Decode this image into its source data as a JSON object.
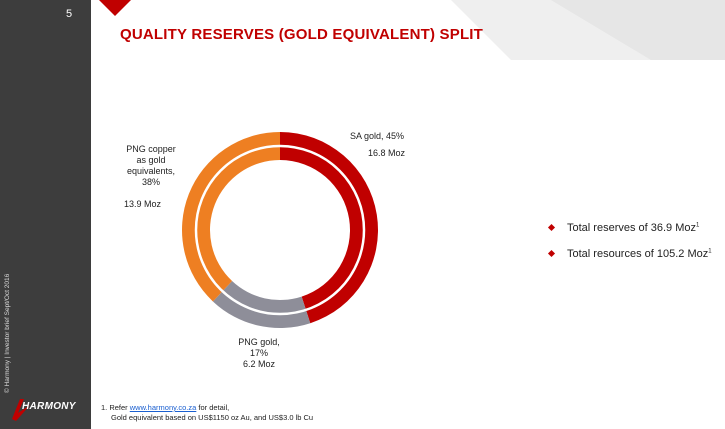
{
  "slide": {
    "page_number": "5",
    "title": "QUALITY RESERVES (GOLD EQUIVALENT) SPLIT",
    "sidebar_note": "© Harmony | Investor brief Sept/Oct 2016",
    "logo_text": "HARMONY"
  },
  "colors": {
    "accent": "#c00000",
    "sa_gold": "#c00000",
    "png_gold": "#8e8e99",
    "png_copper": "#ee7f22",
    "sidebar": "#3d3d3d"
  },
  "chart_data": {
    "type": "pie",
    "donut": true,
    "slices": [
      {
        "label": "SA gold, 45%",
        "percent": 45,
        "value": 16.8,
        "value_label": "16.8 Moz",
        "color": "#c00000"
      },
      {
        "label": "PNG gold, 17%",
        "percent": 17,
        "value": 6.2,
        "value_label": "6.2 Moz",
        "color": "#8e8e99"
      },
      {
        "label": "PNG copper as gold equivalents, 38%",
        "percent": 38,
        "value": 13.9,
        "value_label": "13.9 Moz",
        "color": "#ee7f22"
      }
    ]
  },
  "labels": {
    "sa_name": "SA gold, 45%",
    "sa_value": "16.8 Moz",
    "png_gold_line1": "PNG gold,",
    "png_gold_line2": "17%",
    "png_gold_value": "6.2 Moz",
    "copper_line1": "PNG copper",
    "copper_line2": "as gold",
    "copper_line3": "equivalents,",
    "copper_line4": "38%",
    "copper_value": "13.9 Moz"
  },
  "bullets": [
    {
      "text": "Total reserves of 36.9 Moz",
      "sup": "1"
    },
    {
      "text": "Total resources of 105.2 Moz",
      "sup": "1"
    }
  ],
  "footnote": {
    "prefix": "1.  Refer ",
    "link": "www.harmony.co.za",
    "suffix": " for detail,",
    "line2": "Gold equivalent based on US$1150 oz Au, and US$3.0 lb Cu"
  }
}
